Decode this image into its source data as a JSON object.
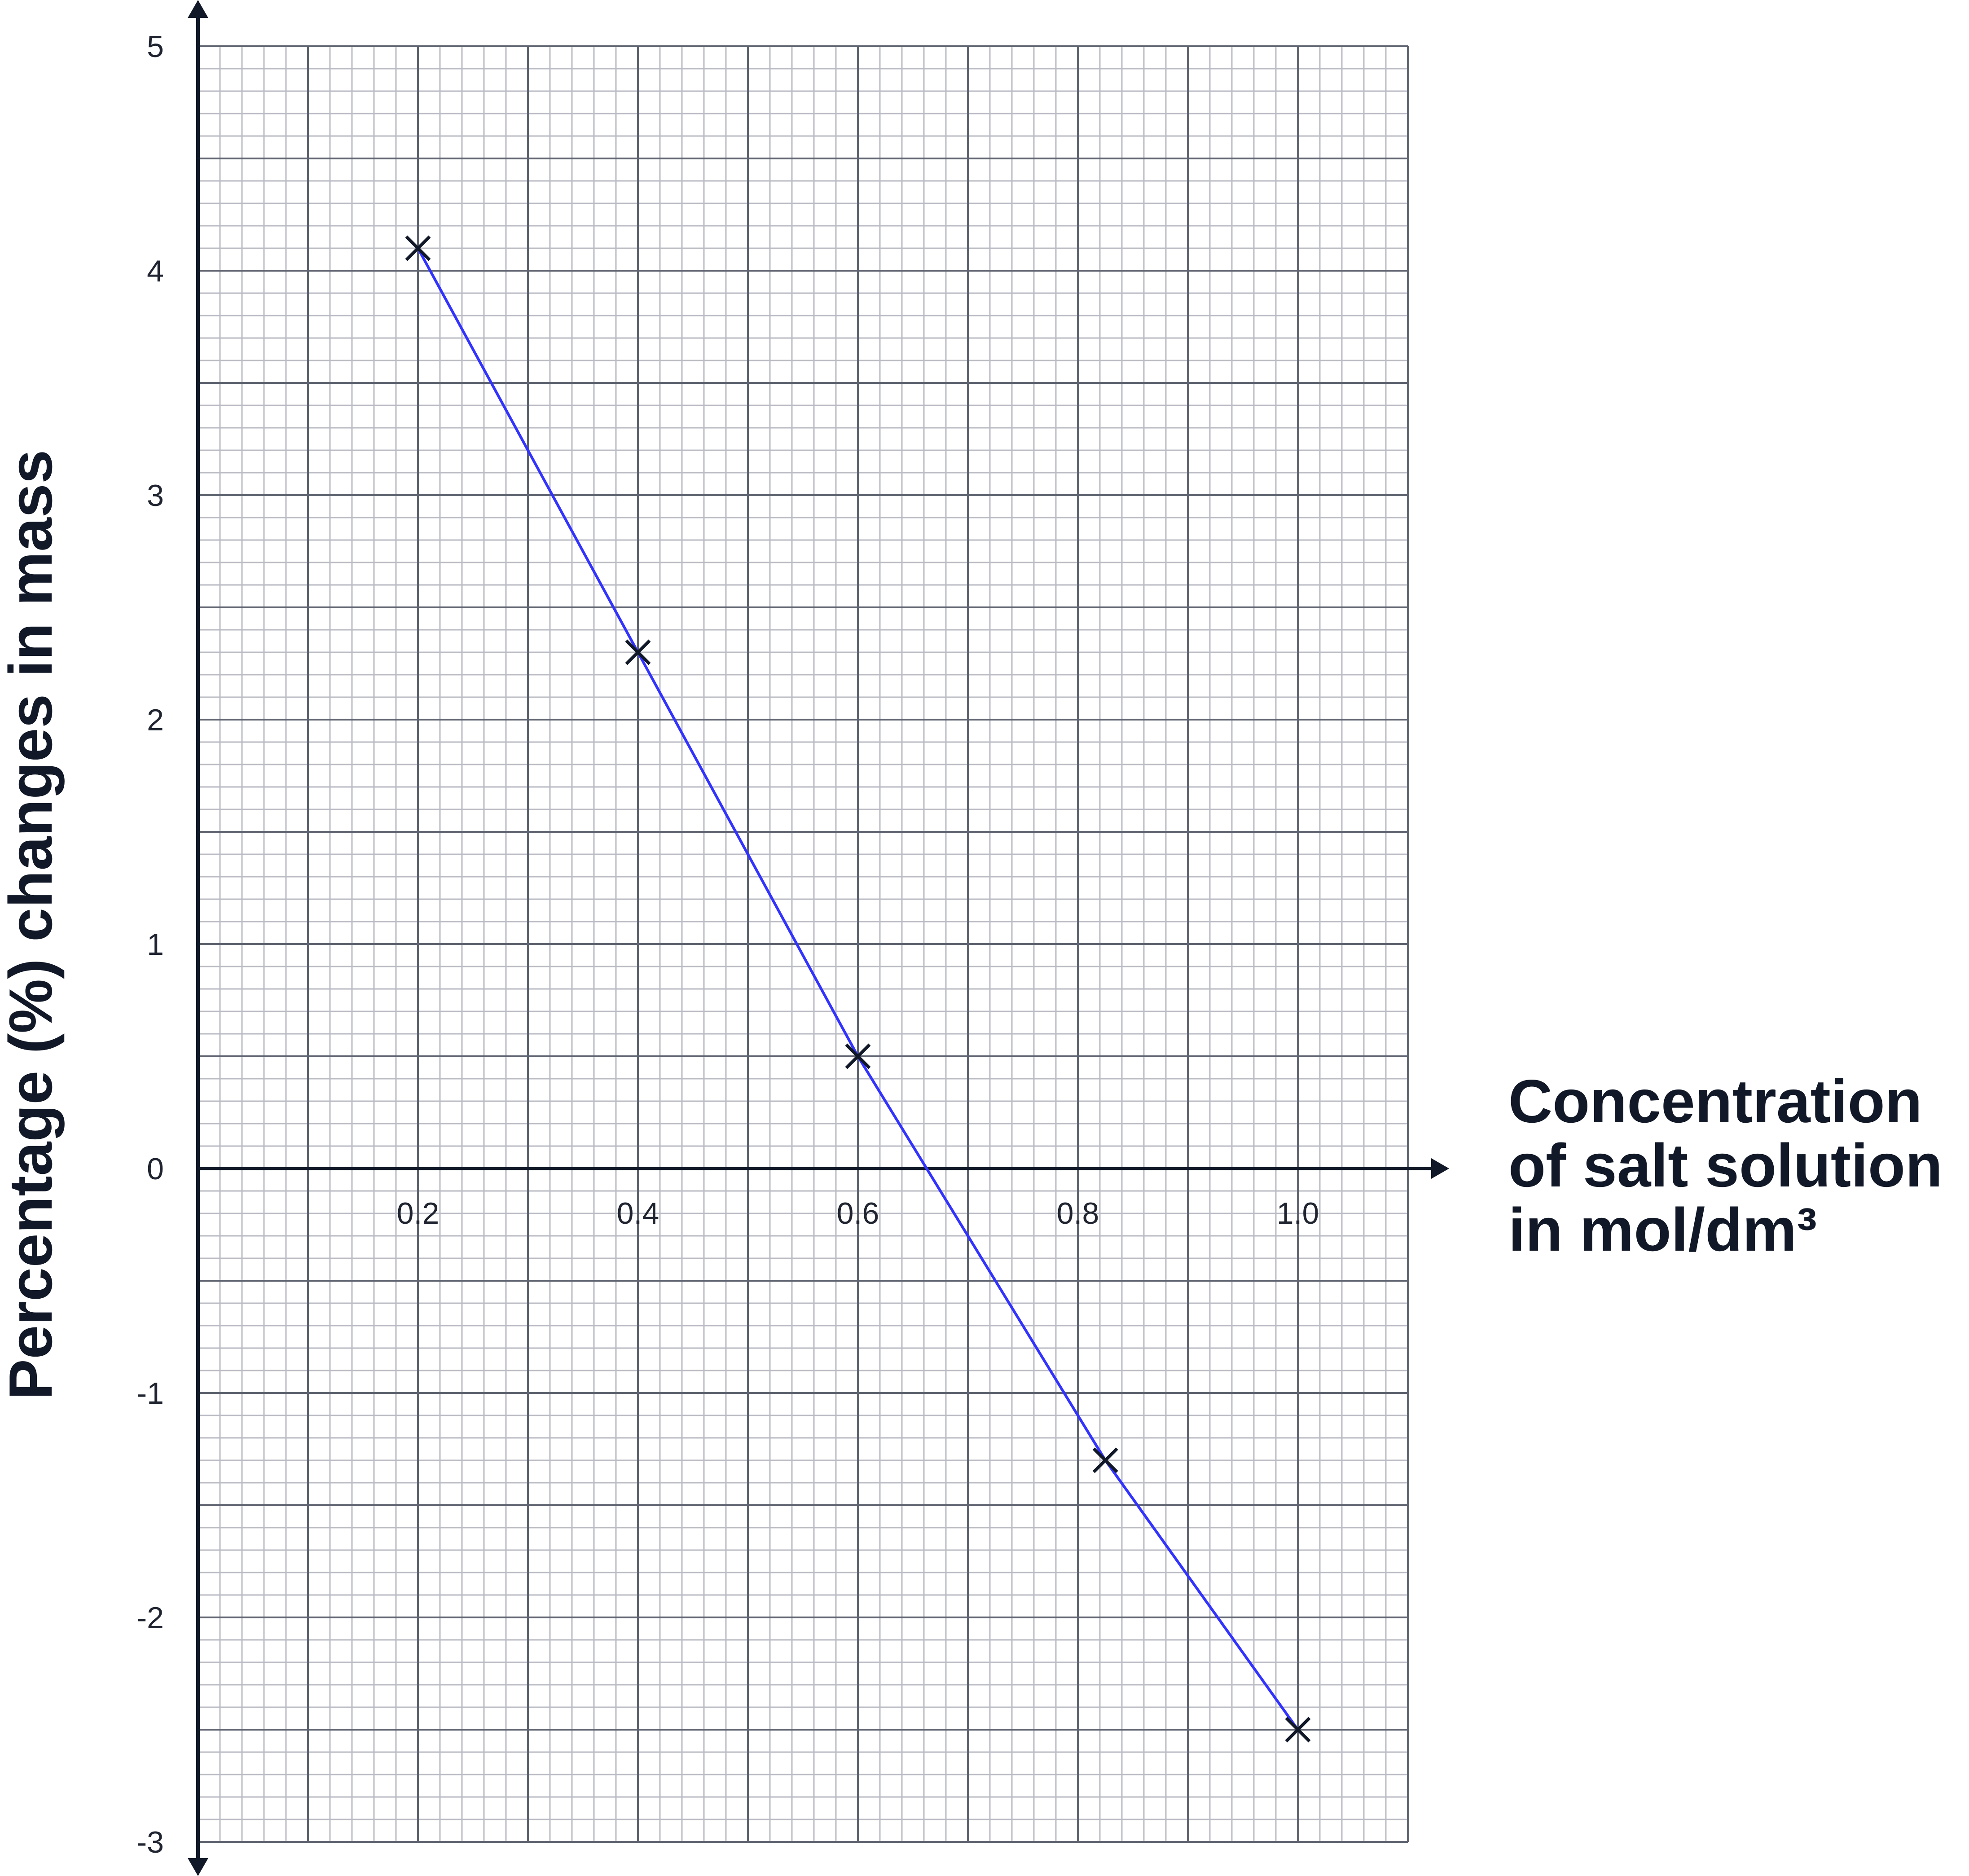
{
  "chart_data": {
    "type": "line",
    "title": "",
    "xlabel_lines": [
      "Concentration",
      "of salt solution",
      "in mol/dm³"
    ],
    "ylabel": "Percentage (%) changes in mass",
    "xlim": [
      0,
      1.1
    ],
    "ylim": [
      -3,
      5
    ],
    "x_ticks": [
      "0.2",
      "0.4",
      "0.6",
      "0.8",
      "1.0"
    ],
    "x_tick_values": [
      0.2,
      0.4,
      0.6,
      0.8,
      1.0
    ],
    "y_ticks": [
      "5",
      "4",
      "3",
      "2",
      "1",
      "0",
      "-1",
      "-2",
      "-3"
    ],
    "y_tick_values": [
      5,
      4,
      3,
      2,
      1,
      0,
      -1,
      -2,
      -3
    ],
    "grid": true,
    "grid_major": {
      "x": 0.1,
      "y": 0.5
    },
    "grid_minor": {
      "x": 0.02,
      "y": 0.1
    },
    "marker": "cross",
    "series": [
      {
        "x": [
          0.2,
          0.4,
          0.6,
          0.825,
          1.0
        ],
        "y": [
          4.1,
          2.3,
          0.5,
          -1.3,
          -2.5
        ]
      }
    ],
    "colors": {
      "line": "#3333ff",
      "marker": "#111827",
      "axis": "#111827",
      "grid_major": "#5f6470",
      "grid_minor": "#babbc3"
    }
  }
}
